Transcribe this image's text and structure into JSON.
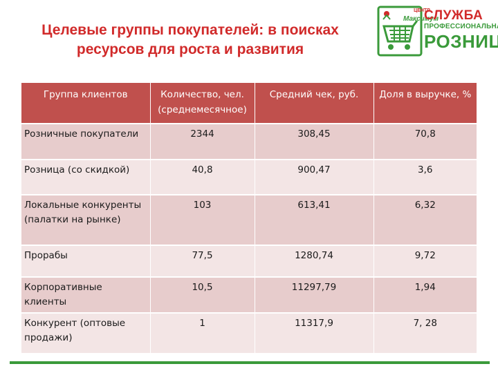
{
  "title": {
    "line1": "Целевые группы покупателей: в поисках",
    "line2": "ресурсов для роста и развития"
  },
  "logo": {
    "small_text": "ЦЕНТР",
    "brand_text": "Максимум",
    "line1": "СЛУЖБА",
    "line2": "ПРОФЕССИОНАЛЬНАЯ",
    "line3": "РОЗНИЦА",
    "icon": "shopping-cart-icon"
  },
  "table": {
    "headers": [
      "Группа клиентов",
      "Количество, чел. (среднемесячное)",
      "Средний чек, руб.",
      "Доля в выручке, %"
    ],
    "rows": [
      {
        "group": "Розничные покупатели",
        "count": "2344",
        "avg_check": "308,45",
        "share": "70,8"
      },
      {
        "group": "Розница (со скидкой)",
        "count": "40,8",
        "avg_check": "900,47",
        "share": "3,6"
      },
      {
        "group": "Локальные конкуренты (палатки на рынке)",
        "count": "103",
        "avg_check": "613,41",
        "share": "6,32"
      },
      {
        "group": "Прорабы",
        "count": "77,5",
        "avg_check": "1280,74",
        "share": "9,72"
      },
      {
        "group": "Корпоративные клиенты",
        "count": "10,5",
        "avg_check": "11297,79",
        "share": "1,94"
      },
      {
        "group": "Конкурент (оптовые продажи)",
        "count": "1",
        "avg_check": "11317,9",
        "share": "7, 28"
      }
    ]
  },
  "colors": {
    "title_red": "#d12a2a",
    "header_bg": "#c0504d",
    "row_dark": "#e7cccc",
    "row_light": "#f3e5e5",
    "brand_green": "#3a9a3a"
  }
}
